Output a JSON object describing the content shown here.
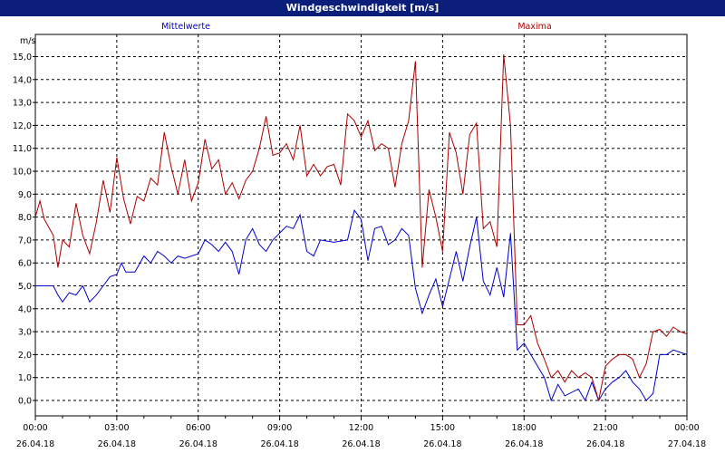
{
  "window": {
    "title": "Windgeschwindigkeit [m/s]"
  },
  "chart_data": {
    "type": "line",
    "title": "Windgeschwindigkeit [m/s]",
    "ylabel": "m/s",
    "xlabel": "",
    "ylim": [
      -1.0,
      15.5
    ],
    "xlim": [
      "2018-04-26 00:00",
      "2018-04-27 00:00"
    ],
    "yticks": [
      "0,0",
      "1,0",
      "2,0",
      "3,0",
      "4,0",
      "5,0",
      "6,0",
      "7,0",
      "8,0",
      "9,0",
      "10,0",
      "11,0",
      "12,0",
      "13,0",
      "14,0",
      "15,0"
    ],
    "xticks": [
      {
        "time": "00:00",
        "date": "26.04.18"
      },
      {
        "time": "03:00",
        "date": "26.04.18"
      },
      {
        "time": "06:00",
        "date": "26.04.18"
      },
      {
        "time": "09:00",
        "date": "26.04.18"
      },
      {
        "time": "12:00",
        "date": "26.04.18"
      },
      {
        "time": "15:00",
        "date": "26.04.18"
      },
      {
        "time": "18:00",
        "date": "26.04.18"
      },
      {
        "time": "21:00",
        "date": "26.04.18"
      },
      {
        "time": "00:00",
        "date": "27.04.18"
      }
    ],
    "grid": true,
    "legend": "top",
    "series": [
      {
        "name": "Mittelwerte",
        "color": "#0000cc",
        "points": [
          [
            0,
            5.0
          ],
          [
            0.33,
            5.0
          ],
          [
            0.66,
            5.0
          ],
          [
            0.83,
            4.6
          ],
          [
            1.0,
            4.3
          ],
          [
            1.25,
            4.7
          ],
          [
            1.5,
            4.6
          ],
          [
            1.75,
            5.0
          ],
          [
            2.0,
            4.3
          ],
          [
            2.25,
            4.6
          ],
          [
            2.5,
            5.0
          ],
          [
            2.75,
            5.4
          ],
          [
            3.0,
            5.5
          ],
          [
            3.17,
            6.0
          ],
          [
            3.33,
            5.6
          ],
          [
            3.67,
            5.6
          ],
          [
            4.0,
            6.3
          ],
          [
            4.25,
            6.0
          ],
          [
            4.5,
            6.5
          ],
          [
            4.75,
            6.3
          ],
          [
            5.0,
            6.0
          ],
          [
            5.25,
            6.3
          ],
          [
            5.5,
            6.2
          ],
          [
            6.0,
            6.4
          ],
          [
            6.25,
            7.0
          ],
          [
            6.5,
            6.8
          ],
          [
            6.75,
            6.5
          ],
          [
            7.0,
            6.9
          ],
          [
            7.25,
            6.5
          ],
          [
            7.5,
            5.5
          ],
          [
            7.75,
            7.0
          ],
          [
            8.0,
            7.5
          ],
          [
            8.25,
            6.8
          ],
          [
            8.5,
            6.5
          ],
          [
            8.75,
            7.0
          ],
          [
            9.0,
            7.3
          ],
          [
            9.25,
            7.6
          ],
          [
            9.5,
            7.5
          ],
          [
            9.75,
            8.1
          ],
          [
            10.0,
            6.5
          ],
          [
            10.25,
            6.3
          ],
          [
            10.5,
            7.0
          ],
          [
            11.0,
            6.9
          ],
          [
            11.5,
            7.0
          ],
          [
            11.75,
            8.3
          ],
          [
            12.0,
            7.9
          ],
          [
            12.25,
            6.1
          ],
          [
            12.5,
            7.5
          ],
          [
            12.75,
            7.6
          ],
          [
            13.0,
            6.8
          ],
          [
            13.25,
            7.0
          ],
          [
            13.5,
            7.5
          ],
          [
            13.75,
            7.2
          ],
          [
            14.0,
            4.9
          ],
          [
            14.25,
            3.8
          ],
          [
            14.5,
            4.6
          ],
          [
            14.75,
            5.3
          ],
          [
            15.0,
            4.1
          ],
          [
            15.25,
            5.3
          ],
          [
            15.5,
            6.5
          ],
          [
            15.75,
            5.2
          ],
          [
            16.0,
            6.7
          ],
          [
            16.25,
            8.0
          ],
          [
            16.5,
            5.2
          ],
          [
            16.75,
            4.6
          ],
          [
            17.0,
            5.8
          ],
          [
            17.25,
            4.5
          ],
          [
            17.5,
            7.3
          ],
          [
            17.75,
            2.2
          ],
          [
            18.0,
            2.5
          ],
          [
            18.25,
            2.0
          ],
          [
            18.5,
            1.5
          ],
          [
            18.75,
            1.0
          ],
          [
            19.0,
            0.0
          ],
          [
            19.25,
            0.7
          ],
          [
            19.5,
            0.2
          ],
          [
            20.0,
            0.5
          ],
          [
            20.25,
            0.0
          ],
          [
            20.5,
            0.8
          ],
          [
            20.75,
            0.0
          ],
          [
            21.0,
            0.5
          ],
          [
            21.25,
            0.8
          ],
          [
            21.5,
            1.0
          ],
          [
            21.75,
            1.3
          ],
          [
            22.0,
            0.8
          ],
          [
            22.25,
            0.5
          ],
          [
            22.5,
            0.0
          ],
          [
            22.75,
            0.3
          ],
          [
            23.0,
            2.0
          ],
          [
            23.25,
            2.0
          ],
          [
            23.5,
            2.2
          ],
          [
            24.0,
            2.0
          ]
        ]
      },
      {
        "name": "Maxima",
        "color": "#aa0000",
        "points": [
          [
            0,
            8.0
          ],
          [
            0.17,
            8.7
          ],
          [
            0.33,
            7.9
          ],
          [
            0.66,
            7.2
          ],
          [
            0.83,
            5.8
          ],
          [
            1.0,
            7.0
          ],
          [
            1.25,
            6.7
          ],
          [
            1.5,
            8.6
          ],
          [
            1.75,
            7.2
          ],
          [
            2.0,
            6.4
          ],
          [
            2.25,
            7.8
          ],
          [
            2.5,
            9.6
          ],
          [
            2.75,
            8.2
          ],
          [
            3.0,
            10.6
          ],
          [
            3.25,
            8.8
          ],
          [
            3.5,
            7.7
          ],
          [
            3.75,
            8.9
          ],
          [
            4.0,
            8.7
          ],
          [
            4.25,
            9.7
          ],
          [
            4.5,
            9.4
          ],
          [
            4.75,
            11.7
          ],
          [
            5.0,
            10.2
          ],
          [
            5.25,
            9.0
          ],
          [
            5.5,
            10.5
          ],
          [
            5.75,
            8.7
          ],
          [
            6.0,
            9.5
          ],
          [
            6.25,
            11.4
          ],
          [
            6.5,
            10.1
          ],
          [
            6.75,
            10.5
          ],
          [
            7.0,
            9.0
          ],
          [
            7.25,
            9.5
          ],
          [
            7.5,
            8.8
          ],
          [
            7.75,
            9.6
          ],
          [
            8.0,
            10.0
          ],
          [
            8.25,
            11.0
          ],
          [
            8.5,
            12.4
          ],
          [
            8.75,
            10.7
          ],
          [
            9.0,
            10.8
          ],
          [
            9.25,
            11.2
          ],
          [
            9.5,
            10.5
          ],
          [
            9.75,
            12.0
          ],
          [
            10.0,
            9.8
          ],
          [
            10.25,
            10.3
          ],
          [
            10.5,
            9.8
          ],
          [
            10.75,
            10.2
          ],
          [
            11.0,
            10.3
          ],
          [
            11.25,
            9.4
          ],
          [
            11.5,
            12.5
          ],
          [
            11.75,
            12.2
          ],
          [
            12.0,
            11.5
          ],
          [
            12.25,
            12.2
          ],
          [
            12.5,
            10.9
          ],
          [
            12.75,
            11.2
          ],
          [
            13.0,
            11.0
          ],
          [
            13.25,
            9.3
          ],
          [
            13.5,
            11.2
          ],
          [
            13.75,
            12.2
          ],
          [
            14.0,
            14.8
          ],
          [
            14.25,
            5.8
          ],
          [
            14.5,
            9.2
          ],
          [
            14.75,
            8.0
          ],
          [
            15.0,
            6.5
          ],
          [
            15.25,
            11.7
          ],
          [
            15.5,
            10.8
          ],
          [
            15.75,
            9.0
          ],
          [
            16.0,
            11.6
          ],
          [
            16.25,
            12.1
          ],
          [
            16.5,
            7.5
          ],
          [
            16.75,
            7.8
          ],
          [
            17.0,
            6.7
          ],
          [
            17.25,
            15.1
          ],
          [
            17.5,
            12.0
          ],
          [
            17.75,
            3.3
          ],
          [
            18.0,
            3.3
          ],
          [
            18.25,
            3.7
          ],
          [
            18.5,
            2.5
          ],
          [
            18.75,
            1.8
          ],
          [
            19.0,
            1.0
          ],
          [
            19.25,
            1.3
          ],
          [
            19.5,
            0.8
          ],
          [
            19.75,
            1.3
          ],
          [
            20.0,
            1.0
          ],
          [
            20.25,
            1.2
          ],
          [
            20.5,
            1.0
          ],
          [
            20.75,
            0.0
          ],
          [
            21.0,
            1.5
          ],
          [
            21.25,
            1.8
          ],
          [
            21.5,
            2.0
          ],
          [
            21.75,
            2.0
          ],
          [
            22.0,
            1.8
          ],
          [
            22.25,
            1.0
          ],
          [
            22.5,
            1.6
          ],
          [
            22.75,
            3.0
          ],
          [
            23.0,
            3.1
          ],
          [
            23.25,
            2.8
          ],
          [
            23.5,
            3.2
          ],
          [
            23.75,
            3.0
          ],
          [
            24.0,
            2.9
          ]
        ]
      }
    ]
  }
}
